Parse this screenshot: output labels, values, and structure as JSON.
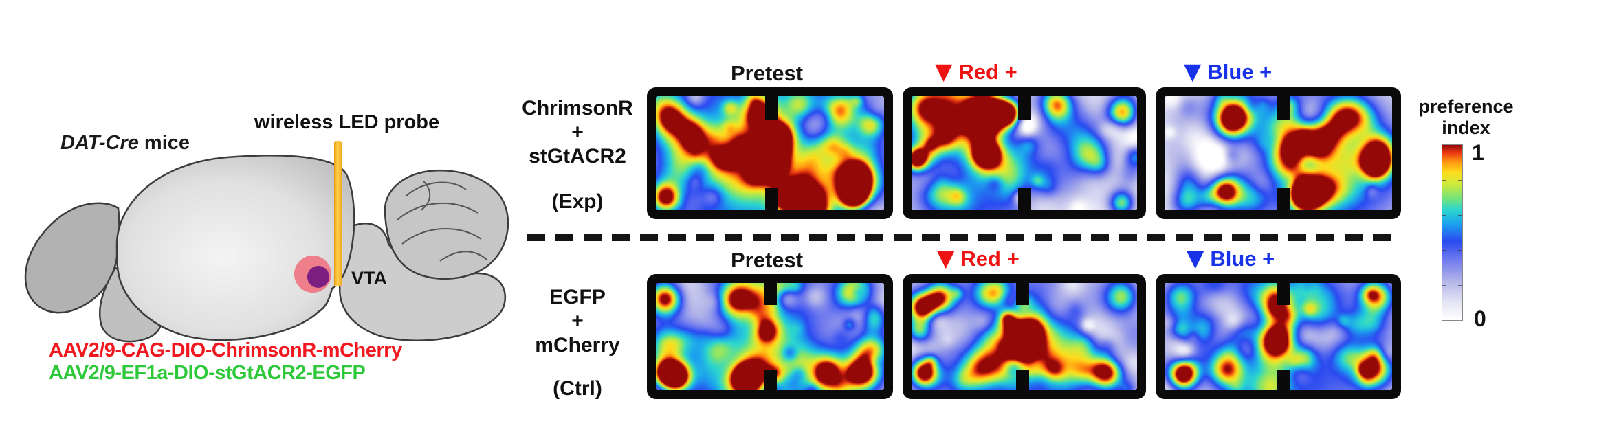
{
  "diagram": {
    "mouse_label_italic": "DAT-Cre",
    "mouse_label_rest": " mice",
    "probe_label": "wireless LED probe",
    "region_label": "VTA",
    "injection_site_colors": {
      "outer": "#ee7e8a",
      "inner": "#7b1f80"
    },
    "probe_color": "#f6b33c",
    "virus_lines": [
      {
        "text": "AAV2/9-CAG-DIO-ChrimsonR-mCherry",
        "color": "#f2181f"
      },
      {
        "text": "AAV2/9-EF1a-DIO-stGtACR2-EGFP",
        "color": "#2ec93a"
      }
    ]
  },
  "rows": [
    {
      "group_lines": [
        "ChrimsonR",
        "+",
        "stGtACR2"
      ],
      "tag": "(Exp)",
      "titles": [
        {
          "label": "Pretest",
          "color": "#141414",
          "triangle_glyph": ""
        },
        {
          "label": "Red +",
          "color": "#ee1414",
          "triangle_glyph": "▼"
        },
        {
          "label": "Blue +",
          "color": "#1732e8",
          "triangle_glyph": "▼"
        }
      ]
    },
    {
      "group_lines": [
        "EGFP",
        "+",
        "mCherry"
      ],
      "tag": "(Ctrl)",
      "titles": [
        {
          "label": "Pretest",
          "color": "#141414",
          "triangle_glyph": ""
        },
        {
          "label": "Red +",
          "color": "#ee1414",
          "triangle_glyph": "▼"
        },
        {
          "label": "Blue +",
          "color": "#1732e8",
          "triangle_glyph": "▼"
        }
      ]
    }
  ],
  "colorbar": {
    "title_line1": "preference",
    "title_line2": "index",
    "max_label": "1",
    "min_label": "0"
  },
  "chart_data": {
    "type": "heatmap",
    "colormap": "jet_on_white",
    "value_label": "preference index",
    "value_range": [
      0,
      1
    ],
    "arena": "two-chamber box with center divider wall and middle gap",
    "panels": [
      {
        "row": "ChrimsonR + stGtACR2 (Exp)",
        "condition": "Pretest",
        "occupancy_bias": "balanced",
        "divider_x": 0.505,
        "noise_seed": 7,
        "noise_amp": 0.5,
        "blobs": [
          [
            0.25,
            0.5,
            0.3,
            0.42
          ],
          [
            0.75,
            0.5,
            0.3,
            0.36
          ],
          [
            0.5,
            0.97,
            0.35,
            0.14
          ],
          [
            0.5,
            0.03,
            0.3,
            0.12
          ],
          [
            0.19,
            0.52,
            0.1,
            -0.24
          ],
          [
            0.63,
            0.32,
            0.1,
            -0.2
          ],
          [
            0.26,
            0.8,
            0.08,
            -0.1
          ],
          [
            0.06,
            0.18,
            0.05,
            0.48
          ],
          [
            0.45,
            0.14,
            0.05,
            0.62
          ],
          [
            0.12,
            0.38,
            0.07,
            0.3
          ],
          [
            0.52,
            0.37,
            0.045,
            1.02
          ],
          [
            0.51,
            0.48,
            0.04,
            0.72
          ],
          [
            0.5,
            0.61,
            0.045,
            0.95
          ],
          [
            0.04,
            0.88,
            0.045,
            0.82
          ],
          [
            0.58,
            0.87,
            0.04,
            0.92
          ],
          [
            0.87,
            0.87,
            0.042,
            1.02
          ],
          [
            0.88,
            0.7,
            0.05,
            0.72
          ],
          [
            0.8,
            0.12,
            0.05,
            0.5
          ],
          [
            0.94,
            0.24,
            0.04,
            0.45
          ],
          [
            0.3,
            0.66,
            0.09,
            0.22
          ],
          [
            0.7,
            0.62,
            0.08,
            0.22
          ]
        ]
      },
      {
        "row": "ChrimsonR + stGtACR2 (Exp)",
        "condition": "Red +",
        "occupancy_bias": "left (stimulated) chamber",
        "divider_x": 0.5,
        "noise_seed": 12,
        "noise_amp": 0.45,
        "blobs": [
          [
            0.22,
            0.45,
            0.28,
            0.42
          ],
          [
            0.3,
            0.8,
            0.18,
            0.22
          ],
          [
            0.76,
            0.5,
            0.3,
            0.08
          ],
          [
            0.15,
            0.08,
            0.1,
            0.55
          ],
          [
            0.06,
            0.1,
            0.06,
            0.55
          ],
          [
            0.36,
            0.13,
            0.05,
            1.02
          ],
          [
            0.43,
            0.14,
            0.04,
            0.8
          ],
          [
            0.29,
            0.15,
            0.05,
            0.6
          ],
          [
            0.3,
            0.3,
            0.05,
            0.5
          ],
          [
            0.02,
            0.55,
            0.035,
            0.88
          ],
          [
            0.33,
            0.5,
            0.04,
            0.88
          ],
          [
            0.33,
            0.5,
            0.09,
            0.22
          ],
          [
            0.14,
            0.68,
            0.1,
            -0.2
          ],
          [
            0.23,
            0.58,
            0.08,
            -0.12
          ],
          [
            0.12,
            0.83,
            0.06,
            0.4
          ],
          [
            0.45,
            0.72,
            0.07,
            0.28
          ],
          [
            0.93,
            0.15,
            0.045,
            0.68
          ],
          [
            0.74,
            0.25,
            0.08,
            0.14
          ],
          [
            0.85,
            0.55,
            0.08,
            0.13
          ],
          [
            0.7,
            0.7,
            0.08,
            0.12
          ],
          [
            0.93,
            0.93,
            0.04,
            0.62
          ],
          [
            0.99,
            0.52,
            0.035,
            0.4
          ],
          [
            0.63,
            0.05,
            0.05,
            0.35
          ]
        ]
      },
      {
        "row": "ChrimsonR + stGtACR2 (Exp)",
        "condition": "Blue +",
        "occupancy_bias": "right (non-inhibited) chamber",
        "divider_x": 0.52,
        "noise_seed": 21,
        "noise_amp": 0.42,
        "blobs": [
          [
            0.72,
            0.45,
            0.28,
            0.38
          ],
          [
            0.8,
            0.78,
            0.2,
            0.22
          ],
          [
            0.25,
            0.5,
            0.26,
            0.12
          ],
          [
            0.15,
            0.55,
            0.12,
            -0.15
          ],
          [
            0.35,
            0.7,
            0.1,
            -0.1
          ],
          [
            0.3,
            0.19,
            0.05,
            0.65
          ],
          [
            0.3,
            0.12,
            0.1,
            0.25
          ],
          [
            0.54,
            0.33,
            0.06,
            0.5
          ],
          [
            0.66,
            0.43,
            0.06,
            0.52
          ],
          [
            0.54,
            0.55,
            0.06,
            0.48
          ],
          [
            0.72,
            0.29,
            0.06,
            0.42
          ],
          [
            0.83,
            0.16,
            0.06,
            0.42
          ],
          [
            0.94,
            0.45,
            0.05,
            0.5
          ],
          [
            0.93,
            0.58,
            0.04,
            0.82
          ],
          [
            0.93,
            0.58,
            0.08,
            0.2
          ],
          [
            0.62,
            0.87,
            0.042,
            1.02
          ],
          [
            0.62,
            0.87,
            0.09,
            0.25
          ],
          [
            0.26,
            0.83,
            0.045,
            0.78
          ],
          [
            0.26,
            0.83,
            0.09,
            0.22
          ],
          [
            0.1,
            0.9,
            0.05,
            0.45
          ],
          [
            0.04,
            0.5,
            0.07,
            0.15
          ],
          [
            0.45,
            0.1,
            0.08,
            0.2
          ]
        ]
      },
      {
        "row": "EGFP + mCherry (Ctrl)",
        "condition": "Pretest",
        "occupancy_bias": "balanced",
        "divider_x": 0.5,
        "noise_seed": 33,
        "noise_amp": 0.5,
        "blobs": [
          [
            0.25,
            0.5,
            0.3,
            0.38
          ],
          [
            0.75,
            0.5,
            0.3,
            0.34
          ],
          [
            0.5,
            0.96,
            0.3,
            0.15
          ],
          [
            0.2,
            0.4,
            0.1,
            -0.2
          ],
          [
            0.75,
            0.48,
            0.11,
            -0.2
          ],
          [
            0.04,
            0.14,
            0.05,
            0.85
          ],
          [
            0.35,
            0.14,
            0.05,
            0.5
          ],
          [
            0.4,
            0.1,
            0.1,
            0.25
          ],
          [
            0.48,
            0.44,
            0.042,
            0.65
          ],
          [
            0.87,
            0.09,
            0.055,
            0.75
          ],
          [
            0.95,
            0.35,
            0.04,
            0.4
          ],
          [
            0.05,
            0.85,
            0.05,
            1.05
          ],
          [
            0.09,
            0.87,
            0.04,
            0.6
          ],
          [
            0.39,
            0.87,
            0.04,
            0.82
          ],
          [
            0.92,
            0.82,
            0.05,
            0.55
          ],
          [
            0.55,
            0.72,
            0.08,
            0.28
          ],
          [
            0.93,
            0.6,
            0.05,
            0.32
          ]
        ]
      },
      {
        "row": "EGFP + mCherry (Ctrl)",
        "condition": "Red +",
        "occupancy_bias": "balanced",
        "divider_x": 0.49,
        "noise_seed": 45,
        "noise_amp": 0.5,
        "blobs": [
          [
            0.24,
            0.45,
            0.28,
            0.38
          ],
          [
            0.75,
            0.5,
            0.3,
            0.28
          ],
          [
            0.5,
            0.97,
            0.3,
            0.15
          ],
          [
            0.16,
            0.36,
            0.09,
            -0.16
          ],
          [
            0.22,
            0.6,
            0.09,
            -0.14
          ],
          [
            0.78,
            0.45,
            0.12,
            -0.14
          ],
          [
            0.12,
            0.12,
            0.05,
            0.9
          ],
          [
            0.05,
            0.22,
            0.045,
            0.78
          ],
          [
            0.03,
            0.45,
            0.04,
            0.55
          ],
          [
            0.05,
            0.84,
            0.04,
            0.72
          ],
          [
            0.38,
            0.07,
            0.05,
            0.45
          ],
          [
            0.49,
            0.52,
            0.055,
            1.05
          ],
          [
            0.49,
            0.52,
            0.11,
            0.3
          ],
          [
            0.31,
            0.78,
            0.06,
            0.6
          ],
          [
            0.86,
            0.83,
            0.05,
            0.8
          ],
          [
            0.92,
            0.12,
            0.05,
            0.65
          ],
          [
            0.6,
            0.3,
            0.07,
            0.18
          ],
          [
            0.68,
            0.75,
            0.08,
            0.25
          ]
        ]
      },
      {
        "row": "EGFP + mCherry (Ctrl)",
        "condition": "Blue +",
        "occupancy_bias": "balanced",
        "divider_x": 0.52,
        "noise_seed": 52,
        "noise_amp": 0.5,
        "blobs": [
          [
            0.25,
            0.5,
            0.28,
            0.34
          ],
          [
            0.75,
            0.5,
            0.28,
            0.32
          ],
          [
            0.5,
            0.95,
            0.3,
            0.18
          ],
          [
            0.14,
            0.5,
            0.1,
            -0.18
          ],
          [
            0.73,
            0.55,
            0.11,
            -0.18
          ],
          [
            0.08,
            0.85,
            0.046,
            1.02
          ],
          [
            0.27,
            0.81,
            0.055,
            0.68
          ],
          [
            0.49,
            0.17,
            0.05,
            0.58
          ],
          [
            0.5,
            0.5,
            0.05,
            0.68
          ],
          [
            0.47,
            0.6,
            0.06,
            0.38
          ],
          [
            0.93,
            0.12,
            0.05,
            0.72
          ],
          [
            0.92,
            0.81,
            0.05,
            0.55
          ],
          [
            0.07,
            0.12,
            0.05,
            0.45
          ],
          [
            0.68,
            0.3,
            0.06,
            0.22
          ],
          [
            0.82,
            0.65,
            0.06,
            0.2
          ],
          [
            0.35,
            0.1,
            0.08,
            0.25
          ]
        ]
      }
    ]
  }
}
